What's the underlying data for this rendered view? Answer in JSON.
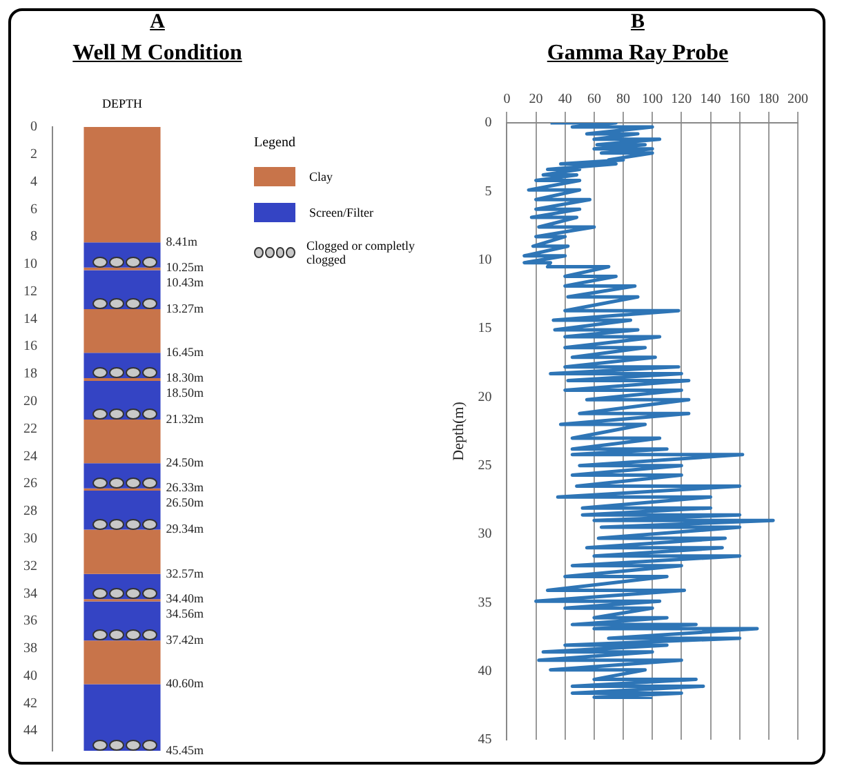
{
  "chart_data": [
    {
      "type": "bar",
      "title": "A",
      "subtitle": "Well M Condition",
      "ylabel": "DEPTH",
      "legend_title": "Legend",
      "legend": "right",
      "stacked": true,
      "categories": [
        null
      ],
      "ylim": [
        45.45,
        0
      ],
      "yticks": [
        0,
        2,
        4,
        6,
        8,
        10,
        12,
        14,
        16,
        18,
        20,
        22,
        24,
        26,
        28,
        30,
        32,
        34,
        36,
        38,
        40,
        42,
        44
      ],
      "series": [
        {
          "name": "Clay",
          "color": "#c8744a",
          "values": [
            8.41
          ]
        },
        {
          "name": "Screen/Filter",
          "color": "#3444c4",
          "values": [
            1.84
          ]
        },
        {
          "color": "#c8744a",
          "values": [
            0.18
          ]
        },
        {
          "color": "#3444c4",
          "values": [
            2.84
          ]
        },
        {
          "color": "#c8744a",
          "values": [
            3.18
          ]
        },
        {
          "color": "#3444c4",
          "values": [
            1.85
          ]
        },
        {
          "color": "#c8744a",
          "values": [
            0.2
          ]
        },
        {
          "color": "#3444c4",
          "values": [
            2.82
          ]
        },
        {
          "color": "#c8744a",
          "values": [
            3.18
          ]
        },
        {
          "color": "#3444c4",
          "values": [
            1.83
          ]
        },
        {
          "color": "#c8744a",
          "values": [
            0.17
          ]
        },
        {
          "color": "#3444c4",
          "values": [
            2.84
          ]
        },
        {
          "color": "#c8744a",
          "values": [
            3.23
          ]
        },
        {
          "color": "#3444c4",
          "values": [
            1.83
          ]
        },
        {
          "color": "#c8744a",
          "values": [
            0.16
          ]
        },
        {
          "color": "#3444c4",
          "values": [
            2.86
          ]
        },
        {
          "color": "#c8744a",
          "values": [
            3.18
          ]
        },
        {
          "color": "#3444c4",
          "values": [
            4.85
          ]
        }
      ],
      "annotations": [
        "Clogged or completly clogged",
        "8.41m",
        "10.25m",
        "10.43m",
        "13.27m",
        "16.45m",
        "18.30m",
        "18.50m",
        "21.32m",
        "24.50m",
        "26.33m",
        "26.50m",
        "29.34m",
        "32.57m",
        "34.40m",
        "34.56m",
        "37.42m",
        "40.60m",
        "45.45m"
      ]
    },
    {
      "type": "line",
      "title": "B",
      "subtitle": "Gamma Ray Probe",
      "ylabel": "Depth(m)",
      "grid": "x",
      "xlim": [
        0,
        200
      ],
      "xticks": [
        0,
        20,
        40,
        60,
        80,
        100,
        120,
        140,
        160,
        180,
        200
      ],
      "ylim": [
        45,
        0
      ],
      "yticks": [
        0,
        5,
        10,
        15,
        20,
        25,
        30,
        35,
        40,
        45
      ],
      "series": [
        {
          "color": "#2e75b6",
          "x": [
            30,
            75,
            45,
            100,
            55,
            90,
            60,
            105,
            62,
            95,
            60,
            100,
            65,
            100,
            70,
            80,
            37,
            75,
            28,
            50,
            25,
            48,
            20,
            50,
            15,
            50,
            20,
            57,
            20,
            50,
            17,
            48,
            22,
            60,
            20,
            40,
            18,
            42,
            12,
            40,
            12,
            30,
            28,
            70,
            40,
            75,
            40,
            88,
            42,
            90,
            40,
            118,
            32,
            85,
            33,
            90,
            40,
            105,
            40,
            95,
            45,
            102,
            40,
            118,
            30,
            120,
            42,
            125,
            40,
            120,
            55,
            125,
            50,
            125,
            37,
            95,
            45,
            105,
            45,
            110,
            45,
            162,
            50,
            120,
            45,
            120,
            48,
            160,
            35,
            140,
            52,
            140,
            52,
            160,
            60,
            183,
            65,
            160,
            63,
            150,
            55,
            148,
            60,
            160,
            45,
            120,
            40,
            110,
            28,
            122,
            20,
            105,
            40,
            100,
            60,
            110,
            45,
            130,
            60,
            172,
            70,
            160,
            40,
            110,
            25,
            100,
            22,
            120,
            30,
            95,
            60,
            130,
            45,
            135,
            45,
            120,
            60,
            100
          ],
          "values": [
            0,
            0,
            0.3,
            0.3,
            0.8,
            0.8,
            1.2,
            1.2,
            1.6,
            1.6,
            1.9,
            1.9,
            2.2,
            2.2,
            2.7,
            2.7,
            3,
            3,
            3.4,
            3.4,
            3.8,
            3.8,
            4.2,
            4.2,
            4.9,
            4.9,
            5.6,
            5.6,
            6.3,
            6.3,
            6.9,
            6.9,
            7.6,
            7.6,
            8.3,
            8.3,
            9,
            9,
            9.7,
            9.7,
            10.2,
            10.2,
            10.5,
            10.5,
            11.2,
            11.2,
            11.9,
            11.9,
            12.7,
            12.7,
            13.7,
            13.7,
            14.4,
            14.4,
            15.1,
            15.1,
            15.6,
            15.6,
            16.4,
            16.4,
            17.1,
            17.1,
            17.8,
            17.8,
            18.3,
            18.3,
            18.8,
            18.8,
            19.5,
            19.5,
            20.2,
            20.2,
            21.2,
            21.2,
            22,
            22,
            23,
            23,
            23.8,
            23.8,
            24.2,
            24.2,
            25,
            25,
            25.7,
            25.7,
            26.5,
            26.5,
            27.3,
            27.3,
            28.1,
            28.1,
            28.6,
            28.6,
            29,
            29,
            29.5,
            29.5,
            30.3,
            30.3,
            31,
            31,
            31.6,
            31.6,
            32.3,
            32.3,
            33.1,
            33.1,
            34.1,
            34.1,
            34.9,
            34.9,
            35.4,
            35.4,
            36.1,
            36.1,
            36.6,
            36.6,
            36.9,
            36.9,
            37.6,
            37.6,
            38.1,
            38.1,
            38.6,
            38.6,
            39.2,
            39.2,
            39.9,
            39.9,
            40.6,
            40.6,
            41.1,
            41.1,
            41.6,
            41.6,
            41.9,
            41.9
          ]
        }
      ]
    }
  ]
}
